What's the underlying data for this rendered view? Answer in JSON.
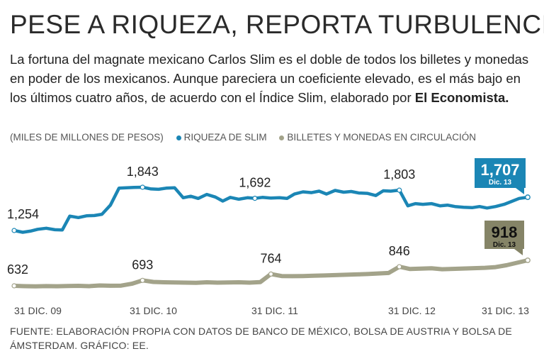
{
  "title": "PESE A RIQUEZA, REPORTA TURBULENCIA",
  "subtitle_text": "La fortuna del magnate mexicano Carlos Slim es el doble de todos los billetes y monedas en poder de los mexicanos. Aunque pareciera un coeficiente elevado, es el más bajo en los últimos cuatro años, de acuerdo con el Índice Slim, elaborado por ",
  "subtitle_bold": "El Economista.",
  "legend": {
    "units": "(MILES DE MILLONES DE PESOS)",
    "slim": "RIQUEZA DE SLIM",
    "money": "BILLETES Y MONEDAS EN CIRCULACIÓN"
  },
  "colors": {
    "slim": "#1b86b5",
    "money": "#a3a38a",
    "money_badge": "#858467"
  },
  "source": "FUENTE: ELABORACIÓN PROPIA CON DATOS DE BANCO DE MÉXICO, BOLSA DE AUSTRIA Y BOLSA DE ÁMSTERDAM. GRÁFICO: EE.",
  "chart_data": {
    "type": "line",
    "title": "",
    "x_ticks": [
      "31 DIC. 09",
      "31 DIC. 10",
      "31 DIC. 11",
      "31 DIC. 12",
      "31 DIC. 13"
    ],
    "xlim": [
      0,
      48
    ],
    "ylim": [
      500,
      1900
    ],
    "series": [
      {
        "name": "RIQUEZA DE SLIM",
        "x": [
          0,
          0.8,
          1.5,
          2.2,
          3,
          3.8,
          4.5,
          5.2,
          6,
          6.8,
          7.5,
          8.2,
          9,
          9.8,
          10.5,
          11.2,
          12,
          12.8,
          13.5,
          14.2,
          15,
          15.8,
          16.5,
          17.2,
          18,
          18.8,
          19.5,
          20.2,
          21,
          21.8,
          22.5,
          23.2,
          24,
          24.8,
          25.5,
          26.2,
          27,
          27.8,
          28.5,
          29.2,
          30,
          30.8,
          31.5,
          32.2,
          33,
          33.8,
          34.5,
          35.2,
          36,
          36.8,
          37.5,
          38.2,
          39,
          39.8,
          40.5,
          41.2,
          42,
          42.8,
          43.5,
          44.2,
          45,
          45.8,
          46.5,
          47.2,
          48
        ],
        "values": [
          1254,
          1230,
          1245,
          1270,
          1285,
          1265,
          1262,
          1450,
          1430,
          1455,
          1458,
          1475,
          1600,
          1830,
          1835,
          1840,
          1843,
          1820,
          1815,
          1830,
          1835,
          1700,
          1720,
          1690,
          1745,
          1710,
          1655,
          1705,
          1680,
          1700,
          1692,
          1705,
          1695,
          1700,
          1690,
          1750,
          1780,
          1770,
          1790,
          1750,
          1800,
          1775,
          1785,
          1765,
          1760,
          1730,
          1795,
          1790,
          1803,
          1590,
          1620,
          1610,
          1620,
          1590,
          1600,
          1580,
          1570,
          1565,
          1580,
          1560,
          1580,
          1610,
          1650,
          1690,
          1707
        ]
      },
      {
        "name": "BILLETES Y MONEDAS EN CIRCULACIÓN",
        "x": [
          0,
          1,
          2,
          3,
          4,
          5,
          6,
          7,
          8,
          9,
          10,
          11,
          12,
          13,
          14,
          15,
          16,
          17,
          18,
          19,
          20,
          21,
          22,
          23,
          24,
          25,
          26,
          27,
          28,
          29,
          30,
          31,
          32,
          33,
          34,
          35,
          36,
          37,
          38,
          39,
          40,
          41,
          42,
          43,
          44,
          45,
          46,
          47,
          48
        ],
        "values": [
          632,
          628,
          626,
          629,
          627,
          630,
          632,
          628,
          636,
          633,
          634,
          655,
          693,
          676,
          672,
          670,
          668,
          666,
          672,
          668,
          670,
          672,
          668,
          673,
          764,
          742,
          740,
          742,
          745,
          748,
          752,
          756,
          760,
          764,
          770,
          776,
          846,
          820,
          824,
          828,
          818,
          822,
          826,
          830,
          834,
          842,
          862,
          890,
          918
        ]
      }
    ],
    "data_labels": [
      {
        "text": "1,254",
        "series": 0,
        "index": 0,
        "pos": "above"
      },
      {
        "text": "1,843",
        "series": 0,
        "index": 16,
        "pos": "above"
      },
      {
        "text": "1,692",
        "series": 0,
        "index": 30,
        "pos": "above"
      },
      {
        "text": "1,803",
        "series": 0,
        "index": 48,
        "pos": "above"
      },
      {
        "text": "632",
        "series": 1,
        "index": 0,
        "pos": "above"
      },
      {
        "text": "693",
        "series": 1,
        "index": 12,
        "pos": "above"
      },
      {
        "text": "764",
        "series": 1,
        "index": 24,
        "pos": "above"
      },
      {
        "text": "846",
        "series": 1,
        "index": 36,
        "pos": "above"
      }
    ],
    "end_badges": [
      {
        "value": "1,707",
        "note": "Dic. 13",
        "series": 0
      },
      {
        "value": "918",
        "note": "Dic. 13",
        "series": 1
      }
    ]
  }
}
